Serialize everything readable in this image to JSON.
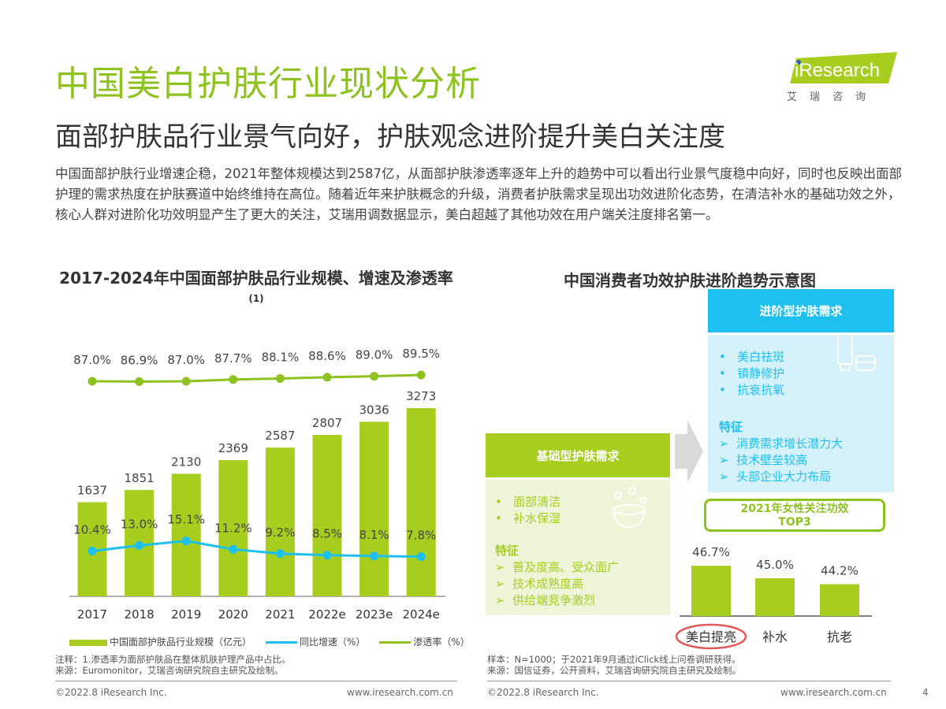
{
  "header": {
    "title": "中国美白护肤行业现状分析",
    "subtitle": "面部护肤品行业景气向好，护肤观念进阶提升美白关注度",
    "body": "中国面部护肤行业增速企稳，2021年整体规模达到2587亿，从面部护肤渗透率逐年上升的趋势中可以看出行业景气度稳中向好，同时也反映出面部护理的需求热度在护肤赛道中始终维持在高位。随着近年来护肤概念的升级，消费者护肤需求呈现出功效进阶化态势，在清洁补水的基础功效之外，核心人群对进阶化功效明显产生了更大的关注，艾瑞用调数据显示，美白超越了其他功效在用户端关注度排名第一。"
  },
  "logo": {
    "text": "iResearch",
    "cn": "艾瑞咨询"
  },
  "colors": {
    "accent_green": "#a7cd1e",
    "title_green": "#8dc21f",
    "blue": "#1ec0ef",
    "light_blue": "#d5f2fb",
    "light_green": "#eef5d9"
  },
  "chart_data": [
    {
      "type": "bar+line",
      "title": "2017-2024年中国面部护肤品行业规模、增速及渗透率",
      "title_note": "(1)",
      "categories": [
        "2017",
        "2018",
        "2019",
        "2020",
        "2021",
        "2022e",
        "2023e",
        "2024e"
      ],
      "series": [
        {
          "name": "中国面部护肤品行业规模（亿元）",
          "type": "bar",
          "color": "#a7cd1e",
          "values": [
            1637,
            1851,
            2130,
            2369,
            2587,
            2807,
            3036,
            3273
          ]
        },
        {
          "name": "同比增速（%）",
          "type": "line",
          "color": "#1ec0ef",
          "values": [
            10.4,
            13.0,
            15.1,
            11.2,
            9.2,
            8.5,
            8.1,
            7.8
          ],
          "labels": [
            "10.4%",
            "13.0%",
            "15.1%",
            "11.2%",
            "9.2%",
            "8.5%",
            "8.1%",
            "7.8%"
          ]
        },
        {
          "name": "渗透率（%）",
          "type": "line",
          "color": "#8dc21f",
          "values": [
            87.0,
            86.9,
            87.0,
            87.7,
            88.1,
            88.6,
            89.0,
            89.5
          ],
          "labels": [
            "87.0%",
            "86.9%",
            "87.0%",
            "87.7%",
            "88.1%",
            "88.6%",
            "89.0%",
            "89.5%"
          ]
        }
      ],
      "legend": "bottom",
      "grid": false
    },
    {
      "type": "bar",
      "title": "2021年女性关注功效",
      "title2": "TOP3",
      "categories": [
        "美白提亮",
        "补水",
        "抗老"
      ],
      "values": [
        46.7,
        45.0,
        44.2
      ],
      "labels": [
        "46.7%",
        "45.0%",
        "44.2%"
      ],
      "highlight": "美白提亮",
      "highlight_color": "#e05a5a"
    }
  ],
  "diagram": {
    "title": "中国消费者功效护肤进阶趋势示意图",
    "basic": {
      "title": "基础型护肤需求",
      "items": [
        "面部清洁",
        "补水保湿"
      ],
      "feature_label": "特征",
      "features": [
        "普及度高、受众面广",
        "技术成熟度高",
        "供给端竞争激烈"
      ]
    },
    "advanced": {
      "title": "进阶型护肤需求",
      "items": [
        "美白祛斑",
        "镇静修护",
        "抗衰抗氧"
      ],
      "feature_label": "特征",
      "features": [
        "消费需求增长潜力大",
        "技术壁垒较高",
        "头部企业大力布局"
      ]
    }
  },
  "notes": {
    "left_note": "注释：1.渗透率为面部护肤品在整体肌肤护理产品中占比。",
    "left_source": "来源：Euromonitor，艾瑞咨询研究院自主研究及绘制。",
    "right_sample": "样本：N=1000；于2021年9月通过iClick线上问卷调研获得。",
    "right_source": "来源：国信证券，公开资料，艾瑞咨询研究院自主研究及绘制。"
  },
  "footer": {
    "copyright": "©2022.8 iResearch Inc.",
    "url": "www.iresearch.com.cn",
    "page": "4"
  }
}
